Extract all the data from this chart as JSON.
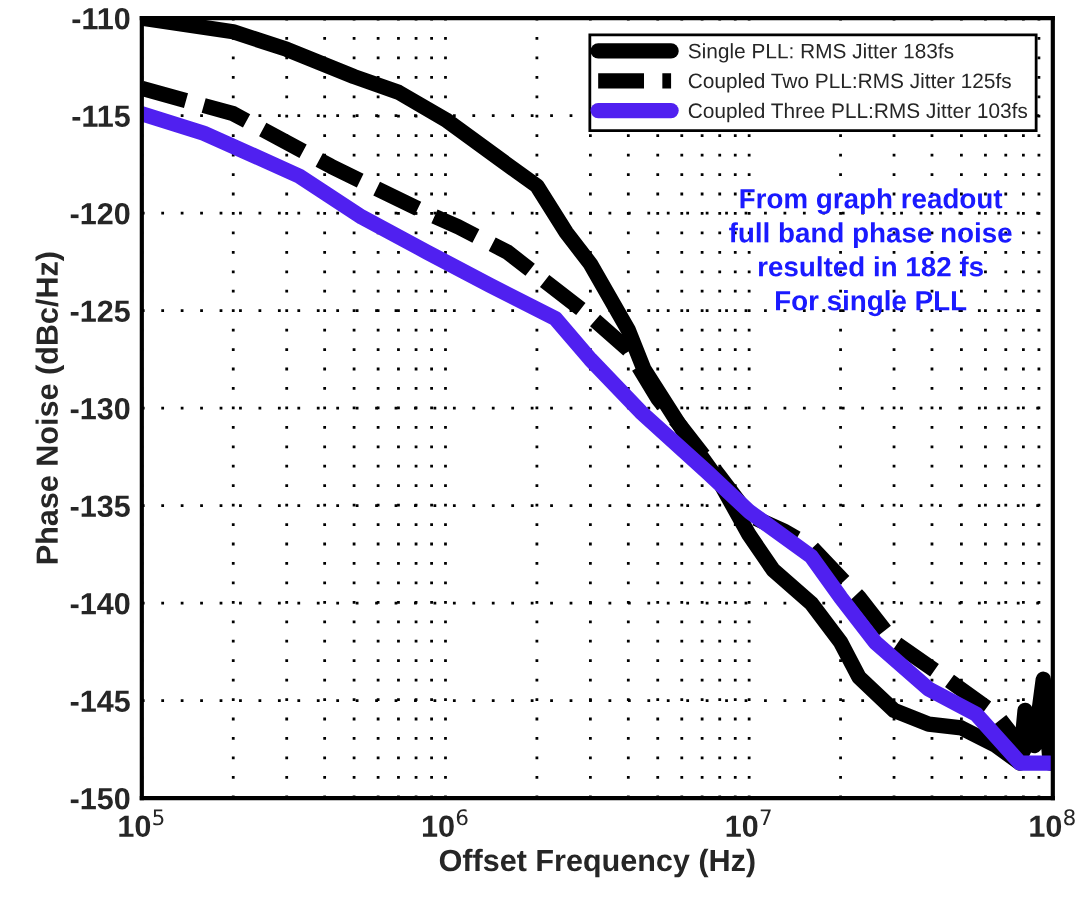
{
  "chart_data": {
    "type": "line",
    "xlabel": "Offset Frequency (Hz)",
    "ylabel": "Phase Noise (dBc/Hz)",
    "log": "x",
    "xlim": [
      100000,
      100000000
    ],
    "ylim": [
      -150,
      -110
    ],
    "xticks": [
      {
        "value": 100000,
        "label": "10$^{5}$"
      },
      {
        "value": 1000000,
        "label": "10$^{6}$"
      },
      {
        "value": 10000000,
        "label": "10$^{7}$"
      },
      {
        "value": 100000000,
        "label": "10$^{8}$"
      }
    ],
    "yticks": [
      -150,
      -145,
      -140,
      -135,
      -130,
      -125,
      -120,
      -115,
      -110
    ],
    "grid": true,
    "legend": "top right",
    "series": [
      {
        "name": "Single PLL: RMS Jitter 183fs",
        "color": "#000000",
        "line_style": "solid",
        "x": [
          100000,
          200000,
          300000,
          500000,
          700000,
          1000000,
          1500000,
          2000000,
          2500000,
          3000000,
          4000000,
          4500000,
          6200000,
          8000000,
          10000000,
          12000000,
          16000000,
          20000000,
          23000000,
          30000000,
          39000000,
          50000000,
          65000000,
          78000000,
          81000000,
          87000000,
          93000000,
          98000000
        ],
        "values": [
          -110.0,
          -110.7,
          -111.6,
          -113.0,
          -113.8,
          -115.2,
          -117.2,
          -118.6,
          -121.0,
          -122.6,
          -126.0,
          -128.0,
          -131.4,
          -133.8,
          -136.5,
          -138.3,
          -140.0,
          -142.0,
          -143.8,
          -145.5,
          -146.2,
          -146.4,
          -147.3,
          -148.2,
          -145.5,
          -147.3,
          -143.9,
          -148.2
        ]
      },
      {
        "name": "Coupled Two PLL:RMS Jitter 125fs",
        "color": "#000000",
        "line_style": "dashed",
        "x": [
          100000,
          200000,
          420000,
          870000,
          1100000,
          1600000,
          2300000,
          3000000,
          4000000,
          5000000,
          6000000,
          8000000,
          10000000,
          13000000,
          16000000,
          23000000,
          30000000,
          44000000,
          65000000,
          80000000,
          98000000
        ],
        "values": [
          -113.6,
          -114.9,
          -117.6,
          -120.0,
          -120.7,
          -122.0,
          -123.9,
          -125.3,
          -127.0,
          -129.5,
          -131.0,
          -133.5,
          -135.5,
          -136.3,
          -137.1,
          -139.7,
          -142.0,
          -143.8,
          -145.7,
          -147.5,
          -148.2
        ]
      },
      {
        "name": "Coupled Three PLL:RMS Jitter 103fs",
        "color": "#5020f0",
        "line_style": "solid",
        "x": [
          100000,
          160000,
          330000,
          530000,
          870000,
          1400000,
          2300000,
          3000000,
          4400000,
          7300000,
          10000000,
          16000000,
          20000000,
          26000000,
          39000000,
          56000000,
          78000000,
          98000000
        ],
        "values": [
          -114.9,
          -115.9,
          -118.1,
          -120.2,
          -122.0,
          -123.7,
          -125.4,
          -127.5,
          -130.2,
          -133.3,
          -135.3,
          -137.6,
          -139.7,
          -142.0,
          -144.4,
          -145.7,
          -148.2,
          -148.2
        ]
      }
    ],
    "annotations": [
      "From graph readout\nfull band phase noise\nresulted in 182 fs\nFor single PLL"
    ]
  }
}
